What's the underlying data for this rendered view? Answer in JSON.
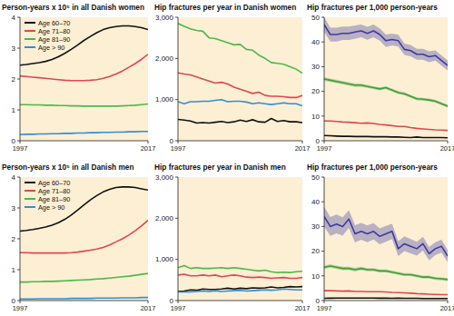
{
  "chart_data": [
    {
      "type": "line",
      "title": "Person-years x 10⁵ in all Danish women",
      "x": [
        1997,
        1998,
        1999,
        2000,
        2001,
        2002,
        2003,
        2004,
        2005,
        2006,
        2007,
        2008,
        2009,
        2010,
        2011,
        2012,
        2013,
        2014,
        2015,
        2016,
        2017
      ],
      "xlim": [
        1997,
        2017
      ],
      "xticks": [
        1997,
        2017
      ],
      "ylim": [
        0,
        4
      ],
      "yticks": [
        0,
        1,
        2,
        3,
        4
      ],
      "legend": "upper left",
      "series": [
        {
          "name": "Age 60–70",
          "color": "#111111",
          "values": [
            2.45,
            2.47,
            2.5,
            2.53,
            2.57,
            2.63,
            2.72,
            2.83,
            2.96,
            3.1,
            3.25,
            3.38,
            3.5,
            3.6,
            3.66,
            3.7,
            3.72,
            3.72,
            3.7,
            3.66,
            3.6
          ]
        },
        {
          "name": "Age 71–80",
          "color": "#e0474f",
          "values": [
            2.1,
            2.08,
            2.06,
            2.04,
            2.02,
            2.0,
            1.98,
            1.96,
            1.95,
            1.95,
            1.95,
            1.96,
            1.98,
            2.02,
            2.08,
            2.16,
            2.26,
            2.38,
            2.5,
            2.64,
            2.8
          ]
        },
        {
          "name": "Age 81–90",
          "color": "#4db848",
          "values": [
            1.17,
            1.17,
            1.16,
            1.16,
            1.15,
            1.15,
            1.14,
            1.14,
            1.13,
            1.13,
            1.12,
            1.12,
            1.12,
            1.12,
            1.12,
            1.12,
            1.13,
            1.14,
            1.15,
            1.17,
            1.19
          ]
        },
        {
          "name": "Age > 90",
          "color": "#2f8fd8",
          "values": [
            0.2,
            0.21,
            0.21,
            0.22,
            0.22,
            0.23,
            0.23,
            0.24,
            0.24,
            0.25,
            0.25,
            0.26,
            0.26,
            0.27,
            0.27,
            0.28,
            0.28,
            0.29,
            0.29,
            0.3,
            0.3
          ]
        }
      ]
    },
    {
      "type": "line",
      "title": "Hip fractures per year in Danish women",
      "x": [
        1997,
        1998,
        1999,
        2000,
        2001,
        2002,
        2003,
        2004,
        2005,
        2006,
        2007,
        2008,
        2009,
        2010,
        2011,
        2012,
        2013,
        2014,
        2015,
        2016,
        2017
      ],
      "xlim": [
        1997,
        2017
      ],
      "xticks": [
        1997,
        2017
      ],
      "ylim": [
        0,
        3000
      ],
      "yticks": [
        0,
        {
          "value": 1000,
          "label": "1,000"
        },
        {
          "value": 2000,
          "label": "2,000"
        },
        {
          "value": 3000,
          "label": "3,000"
        }
      ],
      "series": [
        {
          "color": "#111111",
          "values": [
            520,
            500,
            480,
            430,
            440,
            430,
            450,
            470,
            440,
            460,
            500,
            470,
            510,
            460,
            450,
            540,
            470,
            490,
            460,
            460,
            440
          ]
        },
        {
          "color": "#e0474f",
          "values": [
            1650,
            1620,
            1600,
            1550,
            1500,
            1450,
            1400,
            1420,
            1380,
            1300,
            1250,
            1200,
            1150,
            1180,
            1100,
            1080,
            1080,
            1070,
            1050,
            1050,
            1100
          ]
        },
        {
          "color": "#4db848",
          "values": [
            2850,
            2780,
            2720,
            2680,
            2660,
            2500,
            2480,
            2430,
            2380,
            2330,
            2340,
            2220,
            2200,
            2080,
            2000,
            1900,
            1880,
            1860,
            1800,
            1740,
            1640
          ]
        },
        {
          "color": "#2f8fd8",
          "values": [
            950,
            900,
            950,
            950,
            960,
            960,
            980,
            1000,
            950,
            960,
            960,
            940,
            900,
            920,
            900,
            880,
            900,
            920,
            900,
            900,
            850
          ]
        }
      ]
    },
    {
      "type": "line",
      "title": "Hip fractures per 1,000 person-years",
      "x": [
        1997,
        1998,
        1999,
        2000,
        2001,
        2002,
        2003,
        2004,
        2005,
        2006,
        2007,
        2008,
        2009,
        2010,
        2011,
        2012,
        2013,
        2014,
        2015,
        2016,
        2017
      ],
      "xlim": [
        1997,
        2017
      ],
      "xticks": [
        1997,
        2017
      ],
      "ylim": [
        0,
        50
      ],
      "yticks": [
        0,
        10,
        20,
        30,
        40,
        50
      ],
      "series": [
        {
          "color": "#111111",
          "values": [
            2.1,
            2.0,
            1.9,
            1.8,
            1.8,
            1.7,
            1.7,
            1.7,
            1.6,
            1.6,
            1.6,
            1.5,
            1.5,
            1.4,
            1.3,
            1.5,
            1.3,
            1.3,
            1.3,
            1.3,
            1.2
          ]
        },
        {
          "color": "#e0474f",
          "values": [
            8,
            8,
            7.8,
            7.6,
            7.5,
            7.3,
            7.1,
            7.2,
            7,
            6.6,
            6.4,
            6.1,
            5.8,
            5.8,
            5.3,
            5,
            4.8,
            4.6,
            4.4,
            4.3,
            4.2
          ]
        },
        {
          "color": "#3f9e3a",
          "values": [
            25,
            24.5,
            24,
            23.5,
            23,
            22.5,
            22.5,
            22,
            21.5,
            21,
            21.5,
            20.5,
            19.5,
            19,
            18,
            17,
            16.8,
            16.5,
            16,
            15,
            14
          ],
          "errors": [
            0.7,
            0.7,
            0.7,
            0.7,
            0.7,
            0.7,
            0.7,
            0.6,
            0.6,
            0.6,
            0.6,
            0.6,
            0.6,
            0.6,
            0.6,
            0.6,
            0.6,
            0.6,
            0.6,
            0.6,
            0.6
          ]
        },
        {
          "color": "#3c3ca0",
          "values": [
            47,
            43,
            43,
            43.5,
            43.5,
            44,
            44.5,
            43.5,
            44.5,
            43,
            40.5,
            41,
            40.5,
            37,
            36.5,
            35,
            35,
            34,
            34.5,
            32.5,
            30.5
          ],
          "errors": [
            3,
            2.8,
            2.8,
            2.7,
            2.7,
            2.7,
            2.6,
            2.6,
            2.6,
            2.5,
            2.5,
            2.4,
            2.4,
            2.3,
            2.3,
            2.2,
            2.2,
            2.2,
            2.1,
            2.1,
            2
          ]
        }
      ]
    },
    {
      "type": "line",
      "title": "Person-years x 10⁵ in all Danish men",
      "x": [
        1997,
        1998,
        1999,
        2000,
        2001,
        2002,
        2003,
        2004,
        2005,
        2006,
        2007,
        2008,
        2009,
        2010,
        2011,
        2012,
        2013,
        2014,
        2015,
        2016,
        2017
      ],
      "xlim": [
        1997,
        2017
      ],
      "xticks": [
        1997,
        2017
      ],
      "ylim": [
        0,
        4
      ],
      "yticks": [
        0,
        1,
        2,
        3,
        4
      ],
      "legend": "upper left",
      "series": [
        {
          "name": "Age 60–70",
          "color": "#111111",
          "values": [
            2.25,
            2.27,
            2.3,
            2.34,
            2.38,
            2.44,
            2.52,
            2.63,
            2.77,
            2.93,
            3.1,
            3.26,
            3.4,
            3.52,
            3.6,
            3.66,
            3.68,
            3.68,
            3.66,
            3.62,
            3.58
          ]
        },
        {
          "name": "Age 71–80",
          "color": "#e0474f",
          "values": [
            1.55,
            1.55,
            1.54,
            1.54,
            1.54,
            1.54,
            1.54,
            1.54,
            1.55,
            1.57,
            1.6,
            1.63,
            1.67,
            1.72,
            1.8,
            1.9,
            2.0,
            2.12,
            2.26,
            2.42,
            2.6
          ]
        },
        {
          "name": "Age 81–90",
          "color": "#4db848",
          "values": [
            0.6,
            0.6,
            0.61,
            0.61,
            0.62,
            0.62,
            0.63,
            0.64,
            0.65,
            0.66,
            0.67,
            0.68,
            0.7,
            0.71,
            0.73,
            0.75,
            0.77,
            0.79,
            0.82,
            0.85,
            0.88
          ]
        },
        {
          "name": "Age > 90",
          "color": "#2f8fd8",
          "values": [
            0.05,
            0.05,
            0.05,
            0.06,
            0.06,
            0.06,
            0.06,
            0.06,
            0.07,
            0.07,
            0.07,
            0.07,
            0.08,
            0.08,
            0.08,
            0.08,
            0.09,
            0.09,
            0.09,
            0.1,
            0.1
          ]
        }
      ]
    },
    {
      "type": "line",
      "title": "Hip fractures per year in Danish men",
      "x": [
        1997,
        1998,
        1999,
        2000,
        2001,
        2002,
        2003,
        2004,
        2005,
        2006,
        2007,
        2008,
        2009,
        2010,
        2011,
        2012,
        2013,
        2014,
        2015,
        2016,
        2017
      ],
      "xlim": [
        1997,
        2017
      ],
      "xticks": [
        1997,
        2017
      ],
      "ylim": [
        0,
        3000
      ],
      "yticks": [
        0,
        {
          "value": 1000,
          "label": "1,000"
        },
        {
          "value": 2000,
          "label": "2,000"
        },
        {
          "value": 3000,
          "label": "3,000"
        }
      ],
      "series": [
        {
          "color": "#111111",
          "values": [
            220,
            230,
            260,
            250,
            280,
            270,
            270,
            280,
            300,
            280,
            300,
            290,
            310,
            300,
            310,
            330,
            310,
            320,
            340,
            330,
            340
          ]
        },
        {
          "color": "#e0474f",
          "values": [
            620,
            640,
            600,
            600,
            620,
            600,
            620,
            580,
            600,
            620,
            600,
            570,
            560,
            570,
            560,
            540,
            550,
            560,
            540,
            540,
            560
          ]
        },
        {
          "color": "#4db848",
          "values": [
            800,
            850,
            780,
            800,
            780,
            780,
            790,
            800,
            780,
            800,
            780,
            760,
            740,
            720,
            740,
            700,
            680,
            690,
            680,
            700,
            710
          ]
        },
        {
          "color": "#2f8fd8",
          "values": [
            210,
            210,
            210,
            220,
            230,
            220,
            240,
            220,
            230,
            240,
            250,
            230,
            240,
            250,
            260,
            250,
            260,
            280,
            270,
            260,
            260
          ]
        }
      ]
    },
    {
      "type": "line",
      "title": "Hip fractures per 1,000 person-years",
      "x": [
        1997,
        1998,
        1999,
        2000,
        2001,
        2002,
        2003,
        2004,
        2005,
        2006,
        2007,
        2008,
        2009,
        2010,
        2011,
        2012,
        2013,
        2014,
        2015,
        2016,
        2017
      ],
      "xlim": [
        1997,
        2017
      ],
      "xticks": [
        1997,
        2017
      ],
      "ylim": [
        0,
        50
      ],
      "yticks": [
        0,
        10,
        20,
        30,
        40,
        50
      ],
      "series": [
        {
          "color": "#111111",
          "values": [
            0.9,
            0.95,
            1,
            1,
            1,
            1,
            1,
            1,
            1,
            0.95,
            0.95,
            0.9,
            0.95,
            0.9,
            0.9,
            0.9,
            0.85,
            0.85,
            0.85,
            0.8,
            0.8
          ]
        },
        {
          "color": "#e0474f",
          "values": [
            4,
            4,
            3.9,
            3.8,
            3.9,
            3.7,
            3.7,
            3.6,
            3.6,
            3.6,
            3.5,
            3.3,
            3.2,
            3.1,
            3,
            2.8,
            2.7,
            2.6,
            2.5,
            2.4,
            2.4
          ]
        },
        {
          "color": "#3f9e3a",
          "values": [
            13.5,
            14,
            13.5,
            13,
            13,
            12.5,
            13,
            12.5,
            12.5,
            12,
            12,
            11.5,
            11,
            10.5,
            10.5,
            10,
            9.5,
            9.5,
            9,
            8.8,
            8.5
          ],
          "errors": [
            0.7,
            0.7,
            0.7,
            0.7,
            0.7,
            0.7,
            0.7,
            0.6,
            0.6,
            0.6,
            0.6,
            0.6,
            0.6,
            0.6,
            0.6,
            0.6,
            0.6,
            0.6,
            0.6,
            0.6,
            0.6
          ]
        },
        {
          "color": "#3c3ca0",
          "values": [
            34,
            30,
            31,
            30,
            33,
            27,
            28,
            27,
            28,
            26,
            27,
            28,
            21,
            23,
            22,
            21,
            23,
            19,
            21,
            22,
            18
          ],
          "errors": [
            4,
            3.8,
            3.8,
            3.7,
            3.6,
            3.5,
            3.4,
            3.4,
            3.3,
            3.2,
            3.2,
            3.1,
            3,
            3,
            2.9,
            2.8,
            2.8,
            2.7,
            2.6,
            2.6,
            2.5
          ]
        }
      ]
    }
  ]
}
